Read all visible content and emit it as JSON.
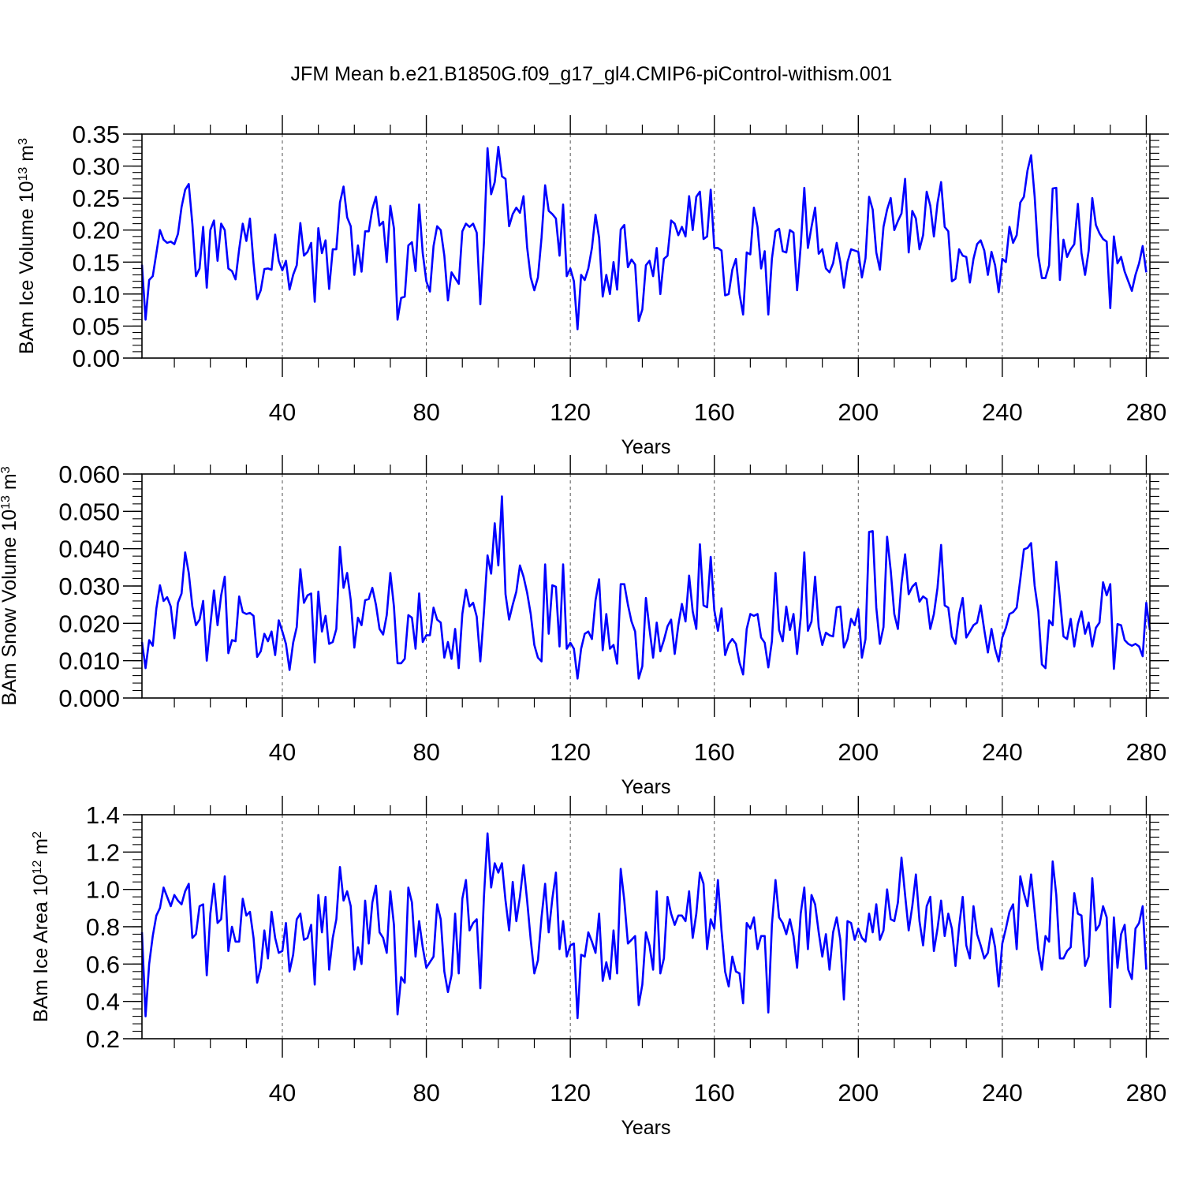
{
  "figure_title": "JFM Mean b.e21.B1850G.f09_g17_gl4.CMIP6-piControl-withism.001",
  "chart_data": [
    {
      "type": "line",
      "title": "",
      "xlabel": "Years",
      "ylabel_main": "BAm Ice Volume 10",
      "ylabel_exp": "13",
      "ylabel_unit": " m",
      "ylabel_unit_exp": "3",
      "xlim": [
        1,
        281
      ],
      "ylim": [
        0.0,
        0.35
      ],
      "xticks": [
        40,
        80,
        120,
        160,
        200,
        240,
        280
      ],
      "xtick_labels": [
        "40",
        "80",
        "120",
        "160",
        "200",
        "240",
        "280"
      ],
      "yticks": [
        0.0,
        0.05,
        0.1,
        0.15,
        0.2,
        0.25,
        0.3,
        0.35
      ],
      "ytick_labels": [
        "0.00",
        "0.05",
        "0.10",
        "0.15",
        "0.20",
        "0.25",
        "0.30",
        "0.35"
      ],
      "grid": "vertical dashed",
      "line_color": "#0000ff",
      "x_start": 1,
      "values": [
        0.146,
        0.06,
        0.122,
        0.128,
        0.164,
        0.2,
        0.185,
        0.18,
        0.182,
        0.178,
        0.194,
        0.236,
        0.263,
        0.272,
        0.21,
        0.128,
        0.14,
        0.205,
        0.11,
        0.2,
        0.215,
        0.152,
        0.21,
        0.2,
        0.14,
        0.136,
        0.123,
        0.17,
        0.21,
        0.183,
        0.218,
        0.148,
        0.092,
        0.106,
        0.139,
        0.14,
        0.138,
        0.193,
        0.152,
        0.137,
        0.152,
        0.107,
        0.13,
        0.145,
        0.211,
        0.16,
        0.166,
        0.18,
        0.088,
        0.203,
        0.164,
        0.184,
        0.108,
        0.17,
        0.17,
        0.243,
        0.268,
        0.22,
        0.206,
        0.13,
        0.176,
        0.135,
        0.198,
        0.198,
        0.233,
        0.252,
        0.207,
        0.213,
        0.15,
        0.238,
        0.203,
        0.06,
        0.094,
        0.096,
        0.176,
        0.181,
        0.136,
        0.24,
        0.164,
        0.12,
        0.104,
        0.175,
        0.206,
        0.2,
        0.16,
        0.09,
        0.134,
        0.125,
        0.116,
        0.198,
        0.21,
        0.205,
        0.21,
        0.196,
        0.084,
        0.18,
        0.328,
        0.256,
        0.275,
        0.33,
        0.284,
        0.28,
        0.206,
        0.225,
        0.235,
        0.227,
        0.253,
        0.173,
        0.126,
        0.106,
        0.126,
        0.188,
        0.27,
        0.23,
        0.225,
        0.218,
        0.16,
        0.24,
        0.128,
        0.14,
        0.12,
        0.045,
        0.13,
        0.122,
        0.14,
        0.172,
        0.224,
        0.188,
        0.096,
        0.13,
        0.1,
        0.15,
        0.107,
        0.201,
        0.208,
        0.142,
        0.154,
        0.146,
        0.058,
        0.076,
        0.145,
        0.152,
        0.128,
        0.172,
        0.1,
        0.155,
        0.16,
        0.215,
        0.21,
        0.192,
        0.205,
        0.19,
        0.253,
        0.2,
        0.252,
        0.26,
        0.186,
        0.19,
        0.263,
        0.172,
        0.172,
        0.168,
        0.098,
        0.1,
        0.138,
        0.155,
        0.1,
        0.068,
        0.165,
        0.162,
        0.235,
        0.205,
        0.14,
        0.167,
        0.068,
        0.155,
        0.198,
        0.202,
        0.167,
        0.165,
        0.2,
        0.196,
        0.106,
        0.175,
        0.266,
        0.172,
        0.205,
        0.235,
        0.163,
        0.17,
        0.14,
        0.134,
        0.148,
        0.18,
        0.15,
        0.11,
        0.15,
        0.17,
        0.168,
        0.166,
        0.126,
        0.156,
        0.252,
        0.232,
        0.165,
        0.138,
        0.205,
        0.232,
        0.25,
        0.2,
        0.214,
        0.226,
        0.28,
        0.165,
        0.23,
        0.218,
        0.17,
        0.192,
        0.26,
        0.238,
        0.19,
        0.242,
        0.275,
        0.205,
        0.198,
        0.12,
        0.124,
        0.17,
        0.16,
        0.158,
        0.118,
        0.155,
        0.178,
        0.184,
        0.168,
        0.13,
        0.166,
        0.145,
        0.103,
        0.155,
        0.15,
        0.205,
        0.18,
        0.192,
        0.243,
        0.252,
        0.293,
        0.317,
        0.252,
        0.16,
        0.125,
        0.125,
        0.145,
        0.265,
        0.266,
        0.122,
        0.185,
        0.158,
        0.17,
        0.178,
        0.241,
        0.164,
        0.13,
        0.168,
        0.25,
        0.208,
        0.195,
        0.186,
        0.182,
        0.078,
        0.19,
        0.148,
        0.158,
        0.135,
        0.12,
        0.105,
        0.13,
        0.148,
        0.175,
        0.134
      ]
    },
    {
      "type": "line",
      "title": "",
      "xlabel": "Years",
      "ylabel_main": "BAm Snow Volume 10",
      "ylabel_exp": "13",
      "ylabel_unit": " m",
      "ylabel_unit_exp": "3",
      "xlim": [
        1,
        281
      ],
      "ylim": [
        0.0,
        0.06
      ],
      "xticks": [
        40,
        80,
        120,
        160,
        200,
        240,
        280
      ],
      "xtick_labels": [
        "40",
        "80",
        "120",
        "160",
        "200",
        "240",
        "280"
      ],
      "yticks": [
        0.0,
        0.01,
        0.02,
        0.03,
        0.04,
        0.05,
        0.06
      ],
      "ytick_labels": [
        "0.000",
        "0.010",
        "0.020",
        "0.030",
        "0.040",
        "0.050",
        "0.060"
      ],
      "grid": "vertical dashed",
      "line_color": "#0000ff",
      "x_start": 1,
      "values": [
        0.015,
        0.008,
        0.0155,
        0.014,
        0.024,
        0.0302,
        0.026,
        0.027,
        0.0245,
        0.016,
        0.0255,
        0.028,
        0.039,
        0.0335,
        0.0245,
        0.0195,
        0.021,
        0.026,
        0.01,
        0.0195,
        0.0288,
        0.0195,
        0.0275,
        0.0325,
        0.012,
        0.0155,
        0.0152,
        0.0272,
        0.023,
        0.0225,
        0.0228,
        0.022,
        0.011,
        0.0125,
        0.0172,
        0.0152,
        0.0178,
        0.0115,
        0.0208,
        0.0178,
        0.0145,
        0.0075,
        0.0148,
        0.019,
        0.0345,
        0.0255,
        0.0275,
        0.028,
        0.0095,
        0.0285,
        0.0178,
        0.022,
        0.0145,
        0.015,
        0.0185,
        0.0405,
        0.0295,
        0.0335,
        0.0262,
        0.0135,
        0.0215,
        0.0195,
        0.0262,
        0.0265,
        0.0295,
        0.025,
        0.0185,
        0.017,
        0.0222,
        0.0335,
        0.0245,
        0.0093,
        0.0093,
        0.0105,
        0.0222,
        0.0215,
        0.0132,
        0.028,
        0.015,
        0.0168,
        0.0168,
        0.0242,
        0.021,
        0.0202,
        0.0108,
        0.015,
        0.0105,
        0.0185,
        0.008,
        0.0225,
        0.029,
        0.0245,
        0.0255,
        0.0218,
        0.0098,
        0.023,
        0.0382,
        0.0333,
        0.0468,
        0.0355,
        0.054,
        0.0278,
        0.021,
        0.025,
        0.0285,
        0.0355,
        0.0325,
        0.0282,
        0.0225,
        0.0142,
        0.0108,
        0.0098,
        0.0358,
        0.0172,
        0.0302,
        0.0298,
        0.0138,
        0.0358,
        0.0132,
        0.0148,
        0.0132,
        0.0052,
        0.0132,
        0.0172,
        0.0178,
        0.0158,
        0.0262,
        0.0318,
        0.0128,
        0.0225,
        0.0132,
        0.0142,
        0.0092,
        0.0305,
        0.0305,
        0.025,
        0.0205,
        0.0178,
        0.0052,
        0.0085,
        0.0268,
        0.0185,
        0.0108,
        0.0202,
        0.0125,
        0.0155,
        0.0192,
        0.021,
        0.0118,
        0.0195,
        0.0252,
        0.0205,
        0.0328,
        0.0232,
        0.0185,
        0.0412,
        0.0248,
        0.0243,
        0.0378,
        0.0235,
        0.018,
        0.024,
        0.0115,
        0.0145,
        0.0158,
        0.0145,
        0.0095,
        0.0063,
        0.0185,
        0.0225,
        0.022,
        0.0225,
        0.0162,
        0.0148,
        0.0082,
        0.0152,
        0.0335,
        0.0182,
        0.0152,
        0.0245,
        0.0182,
        0.0225,
        0.0118,
        0.0215,
        0.039,
        0.018,
        0.0205,
        0.0325,
        0.019,
        0.0142,
        0.0175,
        0.0168,
        0.0165,
        0.0243,
        0.0245,
        0.0135,
        0.0158,
        0.0212,
        0.0195,
        0.0238,
        0.0108,
        0.0158,
        0.0445,
        0.0447,
        0.0242,
        0.0145,
        0.019,
        0.0432,
        0.0342,
        0.0225,
        0.0185,
        0.0308,
        0.0385,
        0.0278,
        0.0298,
        0.0308,
        0.0258,
        0.0272,
        0.0265,
        0.0185,
        0.0225,
        0.0295,
        0.041,
        0.0248,
        0.0242,
        0.0165,
        0.0145,
        0.0225,
        0.0268,
        0.0162,
        0.0178,
        0.0195,
        0.0202,
        0.0248,
        0.0182,
        0.0122,
        0.0185,
        0.0132,
        0.0098,
        0.0162,
        0.0188,
        0.0225,
        0.023,
        0.0242,
        0.0318,
        0.0398,
        0.0402,
        0.0415,
        0.03,
        0.0232,
        0.009,
        0.008,
        0.0208,
        0.0195,
        0.0365,
        0.0268,
        0.0165,
        0.0158,
        0.0212,
        0.0138,
        0.0198,
        0.0232,
        0.0172,
        0.0202,
        0.0138,
        0.0188,
        0.0202,
        0.031,
        0.0275,
        0.0305,
        0.0078,
        0.0198,
        0.0195,
        0.0155,
        0.0145,
        0.014,
        0.0145,
        0.0138,
        0.0112,
        0.0255,
        0.0182
      ]
    },
    {
      "type": "line",
      "title": "",
      "xlabel": "Years",
      "ylabel_main": "BAm Ice Area 10",
      "ylabel_exp": "12",
      "ylabel_unit": " m",
      "ylabel_unit_exp": "2",
      "xlim": [
        1,
        281
      ],
      "ylim": [
        0.2,
        1.4
      ],
      "xticks": [
        40,
        80,
        120,
        160,
        200,
        240,
        280
      ],
      "xtick_labels": [
        "40",
        "80",
        "120",
        "160",
        "200",
        "240",
        "280"
      ],
      "yticks": [
        0.2,
        0.4,
        0.6,
        0.8,
        1.0,
        1.2,
        1.4
      ],
      "ytick_labels": [
        "0.2",
        "0.4",
        "0.6",
        "0.8",
        "1.0",
        "1.2",
        "1.4"
      ],
      "grid": "vertical dashed",
      "line_color": "#0000ff",
      "x_start": 1,
      "values": [
        0.77,
        0.32,
        0.6,
        0.75,
        0.86,
        0.9,
        1.01,
        0.96,
        0.91,
        0.97,
        0.94,
        0.92,
        0.99,
        1.03,
        0.74,
        0.76,
        0.91,
        0.92,
        0.54,
        0.87,
        1.03,
        0.82,
        0.84,
        1.07,
        0.67,
        0.8,
        0.72,
        0.72,
        0.95,
        0.86,
        0.88,
        0.74,
        0.5,
        0.58,
        0.78,
        0.63,
        0.88,
        0.74,
        0.66,
        0.67,
        0.82,
        0.56,
        0.65,
        0.84,
        0.87,
        0.73,
        0.74,
        0.81,
        0.49,
        0.97,
        0.77,
        0.96,
        0.57,
        0.74,
        0.84,
        1.12,
        0.94,
        0.99,
        0.91,
        0.57,
        0.69,
        0.6,
        0.94,
        0.71,
        0.93,
        1.02,
        0.77,
        0.74,
        0.66,
        0.99,
        0.81,
        0.33,
        0.53,
        0.5,
        1.01,
        0.93,
        0.64,
        0.83,
        0.69,
        0.58,
        0.61,
        0.64,
        0.92,
        0.84,
        0.56,
        0.45,
        0.54,
        0.87,
        0.55,
        0.95,
        1.05,
        0.78,
        0.82,
        0.84,
        0.47,
        0.96,
        1.3,
        1.01,
        1.14,
        1.09,
        1.14,
        0.94,
        0.78,
        1.04,
        0.83,
        0.96,
        1.13,
        0.94,
        0.73,
        0.55,
        0.62,
        0.85,
        1.03,
        0.77,
        0.95,
        1.09,
        0.68,
        0.83,
        0.64,
        0.7,
        0.71,
        0.31,
        0.65,
        0.64,
        0.77,
        0.72,
        0.66,
        0.87,
        0.51,
        0.61,
        0.52,
        0.78,
        0.55,
        1.11,
        0.94,
        0.71,
        0.73,
        0.75,
        0.38,
        0.49,
        0.77,
        0.7,
        0.57,
        0.99,
        0.55,
        0.63,
        0.96,
        0.87,
        0.81,
        0.86,
        0.86,
        0.83,
        0.99,
        0.74,
        0.87,
        1.09,
        1.03,
        0.68,
        0.84,
        0.79,
        1.05,
        0.78,
        0.56,
        0.48,
        0.64,
        0.56,
        0.55,
        0.39,
        0.82,
        0.79,
        0.85,
        0.68,
        0.75,
        0.75,
        0.34,
        0.81,
        1.05,
        0.85,
        0.82,
        0.76,
        0.84,
        0.75,
        0.58,
        0.87,
        1.01,
        0.68,
        0.97,
        0.92,
        0.77,
        0.64,
        0.76,
        0.57,
        0.77,
        0.85,
        0.73,
        0.41,
        0.83,
        0.82,
        0.73,
        0.79,
        0.74,
        0.72,
        0.87,
        0.77,
        0.92,
        0.73,
        0.78,
        1.0,
        0.84,
        0.83,
        0.93,
        1.17,
        0.97,
        0.78,
        0.91,
        1.08,
        0.83,
        0.7,
        0.91,
        0.96,
        0.67,
        0.79,
        0.94,
        0.75,
        0.87,
        0.79,
        0.59,
        0.8,
        0.96,
        0.7,
        0.63,
        0.91,
        0.76,
        0.7,
        0.63,
        0.66,
        0.79,
        0.69,
        0.48,
        0.71,
        0.79,
        0.88,
        0.92,
        0.68,
        1.07,
        0.98,
        0.91,
        1.08,
        0.88,
        0.68,
        0.57,
        0.75,
        0.72,
        1.15,
        0.97,
        0.63,
        0.63,
        0.67,
        0.69,
        0.98,
        0.87,
        0.86,
        0.59,
        0.64,
        1.06,
        0.78,
        0.81,
        0.91,
        0.85,
        0.37,
        0.85,
        0.58,
        0.76,
        0.81,
        0.57,
        0.52,
        0.79,
        0.82,
        0.91,
        0.57
      ]
    }
  ]
}
